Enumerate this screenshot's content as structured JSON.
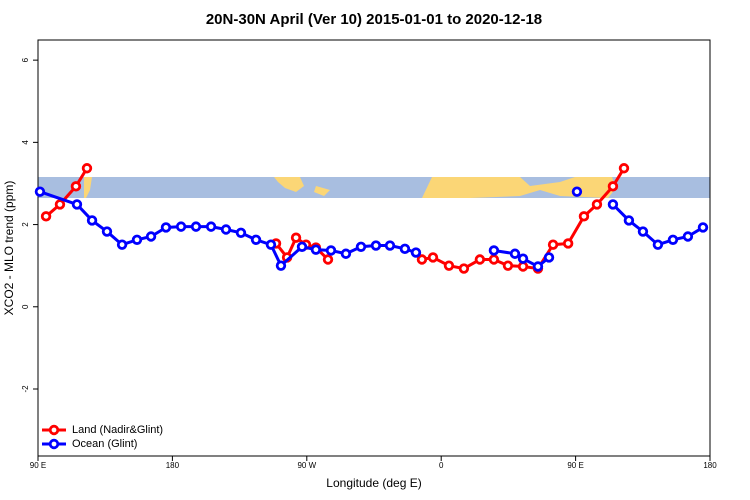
{
  "chart_data": {
    "type": "line",
    "title": "20N-30N April (Ver 10)   2015-01-01 to 2020-12-18",
    "x_label": "Longitude (deg E)",
    "y_label": "XCO2 - MLO trend (ppm)",
    "xlim": [
      90,
      540
    ],
    "ylim": [
      -3.63,
      6.49
    ],
    "xticks": [
      {
        "value": 90,
        "label": "90 E"
      },
      180,
      {
        "value": 270,
        "label": "90 W"
      },
      {
        "value": 360,
        "label": "0"
      },
      {
        "value": 450,
        "label": "90 E"
      },
      {
        "value": 540,
        "label": "180"
      }
    ],
    "yticks": [
      -2,
      0,
      2,
      4,
      6
    ],
    "legend": "bottom-left",
    "series": [
      {
        "name": "Land (Nadir&Glint)",
        "color": "#ff0000",
        "x": [
          95.4,
          104.7,
          115.4,
          122.8,
          186,
          249.4,
          256.8,
          262.8,
          269.5,
          276.1,
          284.2,
          315,
          347.1,
          354.5,
          365.2,
          375.2,
          385.9,
          395.3,
          404.7,
          414.8,
          424.8,
          434.9,
          445,
          455.6,
          464.3,
          475,
          482.4
        ],
        "values": [
          2.2,
          2.49,
          2.93,
          3.37,
          null,
          1.54,
          1.2,
          1.68,
          1.51,
          1.44,
          1.15,
          null,
          1.15,
          1.2,
          1.0,
          0.93,
          1.15,
          1.15,
          1.0,
          0.98,
          0.93,
          1.51,
          1.54,
          2.2,
          2.49,
          2.93,
          3.37
        ]
      },
      {
        "name": "Ocean (Glint)",
        "color": "#0000ff",
        "x": [
          91.3,
          116.1,
          126.2,
          136.2,
          146.3,
          156.3,
          165.7,
          175.7,
          185.8,
          195.8,
          205.9,
          215.9,
          225.9,
          236,
          246,
          252.7,
          266.8,
          276.1,
          286.2,
          296.2,
          306.3,
          316.3,
          325.7,
          335.7,
          343.1,
          369,
          395.3,
          409.4,
          414.8,
          424.8,
          432.2,
          441,
          450.9,
          463,
          475,
          485.7,
          495.1,
          505.1,
          515.2,
          525.2,
          535.3
        ],
        "values": [
          2.8,
          2.49,
          2.1,
          1.83,
          1.51,
          1.63,
          1.71,
          1.93,
          1.95,
          1.95,
          1.95,
          1.88,
          1.8,
          1.63,
          1.51,
          1.0,
          1.46,
          1.39,
          1.37,
          1.29,
          1.46,
          1.49,
          1.49,
          1.41,
          1.32,
          null,
          1.37,
          1.29,
          1.17,
          0.98,
          1.2,
          null,
          2.8,
          null,
          2.49,
          2.1,
          1.83,
          1.51,
          1.63,
          1.71,
          1.93
        ]
      }
    ]
  }
}
